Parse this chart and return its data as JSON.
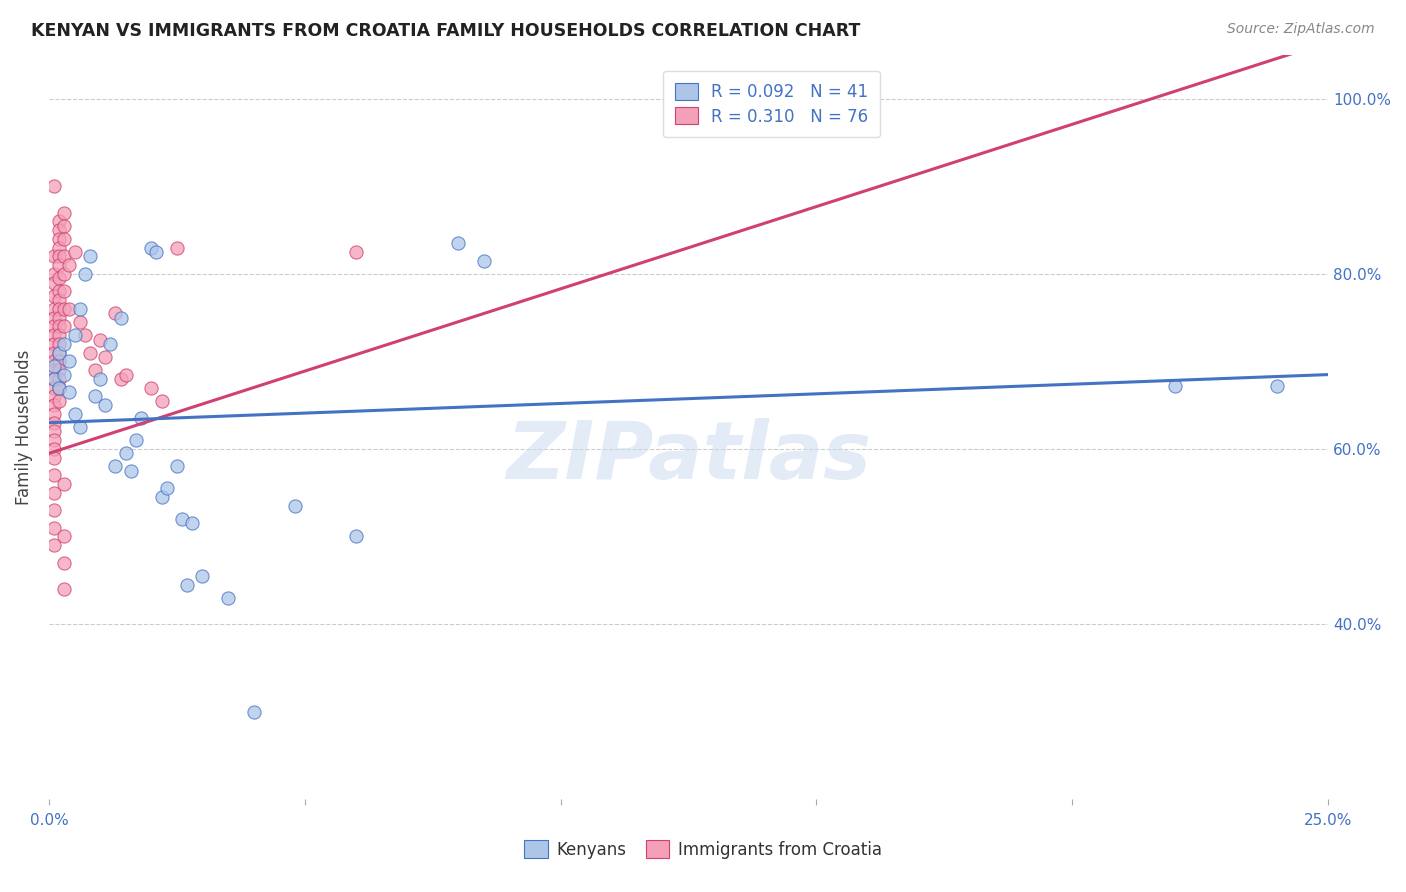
{
  "title": "KENYAN VS IMMIGRANTS FROM CROATIA FAMILY HOUSEHOLDS CORRELATION CHART",
  "source": "Source: ZipAtlas.com",
  "ylabel": "Family Households",
  "watermark": "ZIPatlas",
  "legend_kenyan_label": "Kenyans",
  "legend_croatia_label": "Immigrants from Croatia",
  "kenyan_R": 0.092,
  "kenyan_N": 41,
  "croatia_R": 0.31,
  "croatia_N": 76,
  "xmin": 0.0,
  "xmax": 0.25,
  "ymin": 0.2,
  "ymax": 1.05,
  "ytick_vals": [
    0.4,
    0.6,
    0.8,
    1.0
  ],
  "ytick_labels": [
    "40.0%",
    "60.0%",
    "80.0%",
    "100.0%"
  ],
  "xtick_vals": [
    0.0,
    0.05,
    0.1,
    0.15,
    0.2,
    0.25
  ],
  "xtick_labels": [
    "0.0%",
    "",
    "",
    "",
    "",
    "25.0%"
  ],
  "kenyan_color": "#adc6e8",
  "kenyan_line_color": "#4472c4",
  "croatia_color": "#f4a0b8",
  "croatia_line_color": "#d04070",
  "kenyan_line_x": [
    0.0,
    0.25
  ],
  "kenyan_line_y": [
    0.63,
    0.685
  ],
  "croatia_line_x": [
    0.0,
    0.25
  ],
  "croatia_line_y": [
    0.595,
    1.065
  ],
  "kenyan_scatter": [
    [
      0.001,
      0.695
    ],
    [
      0.001,
      0.68
    ],
    [
      0.002,
      0.71
    ],
    [
      0.002,
      0.67
    ],
    [
      0.003,
      0.685
    ],
    [
      0.003,
      0.72
    ],
    [
      0.004,
      0.665
    ],
    [
      0.004,
      0.7
    ],
    [
      0.005,
      0.64
    ],
    [
      0.005,
      0.73
    ],
    [
      0.006,
      0.76
    ],
    [
      0.006,
      0.625
    ],
    [
      0.007,
      0.8
    ],
    [
      0.008,
      0.82
    ],
    [
      0.009,
      0.66
    ],
    [
      0.01,
      0.68
    ],
    [
      0.011,
      0.65
    ],
    [
      0.012,
      0.72
    ],
    [
      0.013,
      0.58
    ],
    [
      0.014,
      0.75
    ],
    [
      0.015,
      0.595
    ],
    [
      0.016,
      0.575
    ],
    [
      0.017,
      0.61
    ],
    [
      0.018,
      0.635
    ],
    [
      0.02,
      0.83
    ],
    [
      0.021,
      0.825
    ],
    [
      0.022,
      0.545
    ],
    [
      0.023,
      0.555
    ],
    [
      0.025,
      0.58
    ],
    [
      0.026,
      0.52
    ],
    [
      0.027,
      0.445
    ],
    [
      0.028,
      0.515
    ],
    [
      0.03,
      0.455
    ],
    [
      0.035,
      0.43
    ],
    [
      0.04,
      0.3
    ],
    [
      0.048,
      0.535
    ],
    [
      0.06,
      0.5
    ],
    [
      0.08,
      0.835
    ],
    [
      0.085,
      0.815
    ],
    [
      0.22,
      0.672
    ],
    [
      0.24,
      0.672
    ]
  ],
  "croatia_scatter": [
    [
      0.001,
      0.9
    ],
    [
      0.001,
      0.82
    ],
    [
      0.001,
      0.8
    ],
    [
      0.001,
      0.79
    ],
    [
      0.001,
      0.775
    ],
    [
      0.001,
      0.76
    ],
    [
      0.001,
      0.75
    ],
    [
      0.001,
      0.74
    ],
    [
      0.001,
      0.73
    ],
    [
      0.001,
      0.72
    ],
    [
      0.001,
      0.71
    ],
    [
      0.001,
      0.7
    ],
    [
      0.001,
      0.69
    ],
    [
      0.001,
      0.68
    ],
    [
      0.001,
      0.67
    ],
    [
      0.001,
      0.66
    ],
    [
      0.001,
      0.65
    ],
    [
      0.001,
      0.64
    ],
    [
      0.001,
      0.63
    ],
    [
      0.001,
      0.62
    ],
    [
      0.001,
      0.61
    ],
    [
      0.001,
      0.6
    ],
    [
      0.001,
      0.59
    ],
    [
      0.001,
      0.57
    ],
    [
      0.001,
      0.55
    ],
    [
      0.001,
      0.53
    ],
    [
      0.001,
      0.51
    ],
    [
      0.001,
      0.49
    ],
    [
      0.002,
      0.86
    ],
    [
      0.002,
      0.85
    ],
    [
      0.002,
      0.84
    ],
    [
      0.002,
      0.83
    ],
    [
      0.002,
      0.82
    ],
    [
      0.002,
      0.81
    ],
    [
      0.002,
      0.795
    ],
    [
      0.002,
      0.78
    ],
    [
      0.002,
      0.77
    ],
    [
      0.002,
      0.76
    ],
    [
      0.002,
      0.75
    ],
    [
      0.002,
      0.74
    ],
    [
      0.002,
      0.73
    ],
    [
      0.002,
      0.72
    ],
    [
      0.002,
      0.71
    ],
    [
      0.002,
      0.7
    ],
    [
      0.002,
      0.69
    ],
    [
      0.002,
      0.68
    ],
    [
      0.002,
      0.67
    ],
    [
      0.002,
      0.655
    ],
    [
      0.003,
      0.87
    ],
    [
      0.003,
      0.855
    ],
    [
      0.003,
      0.84
    ],
    [
      0.003,
      0.82
    ],
    [
      0.003,
      0.8
    ],
    [
      0.003,
      0.78
    ],
    [
      0.003,
      0.76
    ],
    [
      0.003,
      0.74
    ],
    [
      0.003,
      0.56
    ],
    [
      0.003,
      0.5
    ],
    [
      0.003,
      0.47
    ],
    [
      0.003,
      0.44
    ],
    [
      0.004,
      0.81
    ],
    [
      0.004,
      0.76
    ],
    [
      0.005,
      0.825
    ],
    [
      0.006,
      0.745
    ],
    [
      0.007,
      0.73
    ],
    [
      0.008,
      0.71
    ],
    [
      0.009,
      0.69
    ],
    [
      0.01,
      0.725
    ],
    [
      0.011,
      0.705
    ],
    [
      0.013,
      0.755
    ],
    [
      0.014,
      0.68
    ],
    [
      0.015,
      0.685
    ],
    [
      0.02,
      0.67
    ],
    [
      0.022,
      0.655
    ],
    [
      0.025,
      0.83
    ],
    [
      0.06,
      0.825
    ]
  ]
}
